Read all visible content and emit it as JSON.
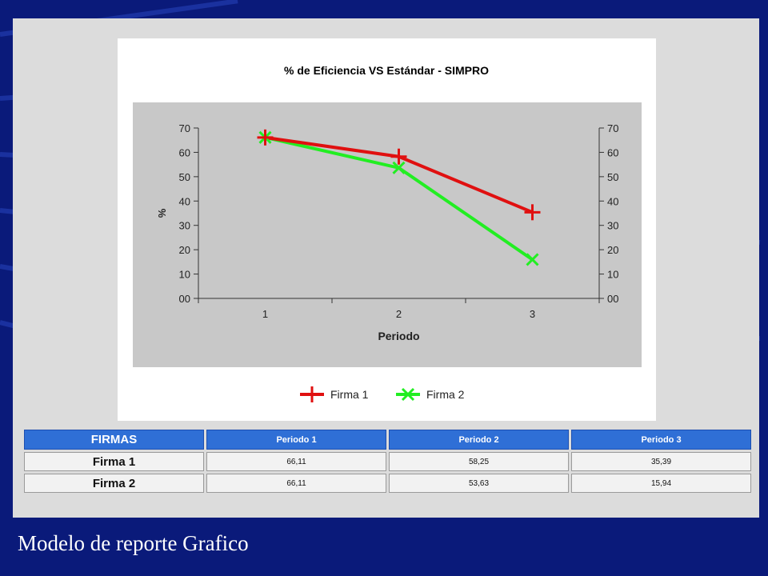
{
  "colors": {
    "slide_background": "#0a1a7a",
    "panel_background": "#dcdcdc",
    "plot_background": "#c8c8c8",
    "series_firma1": "#e01010",
    "series_firma2": "#22ee22",
    "table_header": "#2f6fd6"
  },
  "chart_data": {
    "type": "line",
    "title": "% de Eficiencia VS Estándar - SIMPRO",
    "xlabel": "Periodo",
    "ylabel": "%",
    "categories": [
      "1",
      "2",
      "3"
    ],
    "ylim": [
      0,
      70
    ],
    "y_ticks_left": [
      "00",
      "10",
      "20",
      "30",
      "40",
      "50",
      "60",
      "70"
    ],
    "y_ticks_right": [
      "00",
      "10",
      "20",
      "30",
      "40",
      "50",
      "60",
      "70"
    ],
    "grid": false,
    "legend_position": "bottom",
    "series": [
      {
        "name": "Firma 1",
        "values": [
          66.11,
          58.25,
          35.39
        ],
        "color": "#e01010",
        "marker": "plus"
      },
      {
        "name": "Firma 2",
        "values": [
          66.11,
          53.63,
          15.94
        ],
        "color": "#22ee22",
        "marker": "x"
      }
    ]
  },
  "table": {
    "headers": [
      "FIRMAS",
      "Periodo 1",
      "Periodo 2",
      "Periodo 3"
    ],
    "rows": [
      {
        "name": "Firma 1",
        "values": [
          "66,11",
          "58,25",
          "35,39"
        ]
      },
      {
        "name": "Firma 2",
        "values": [
          "66,11",
          "53,63",
          "15,94"
        ]
      }
    ]
  },
  "caption": "Modelo de reporte Grafico"
}
